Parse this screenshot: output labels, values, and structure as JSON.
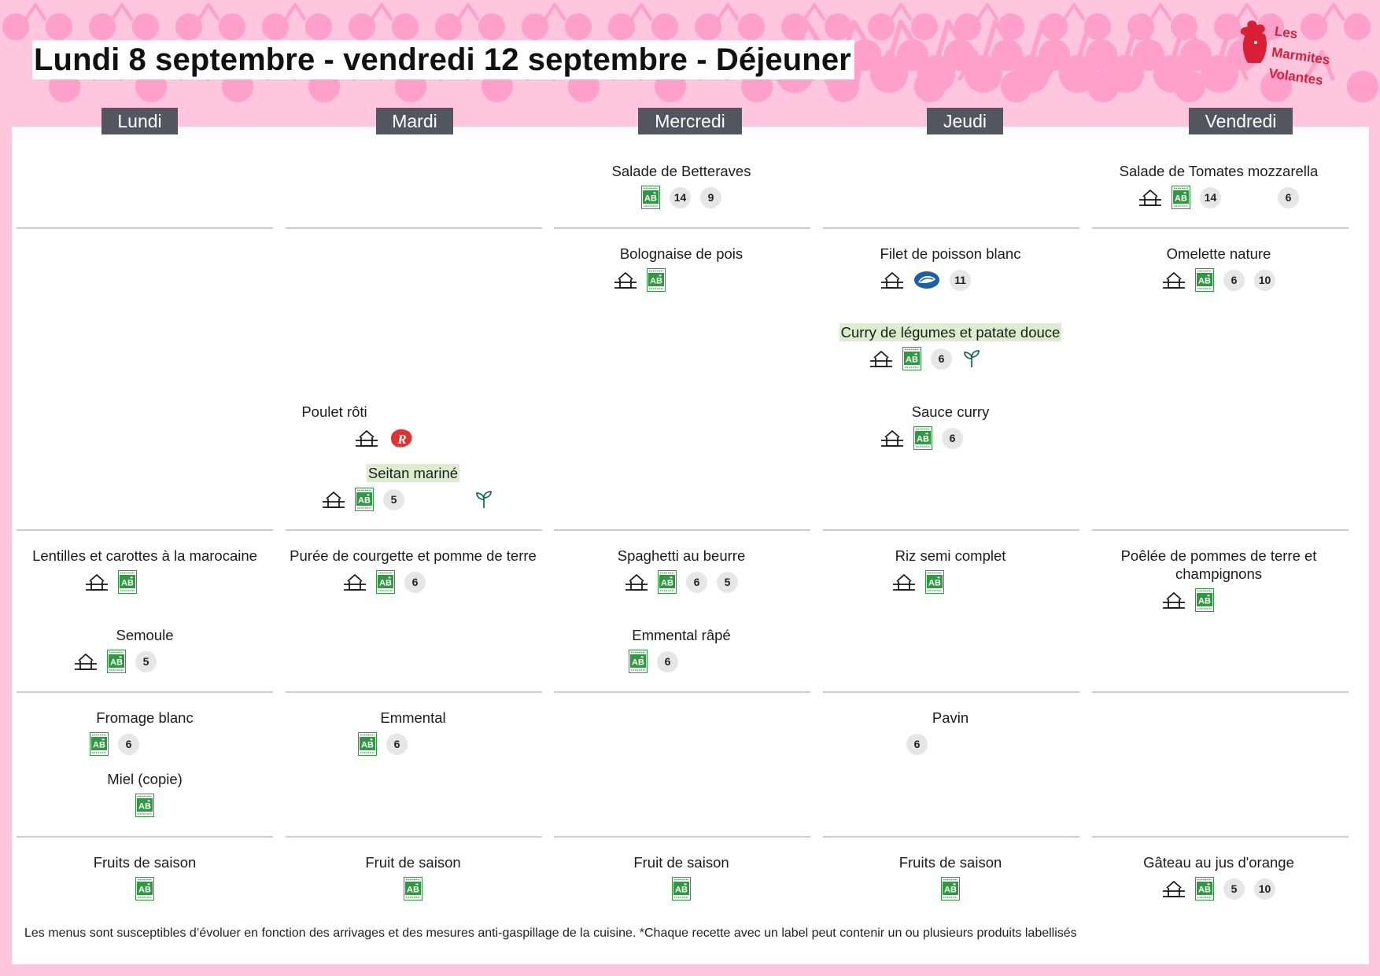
{
  "header": {
    "title": "Lundi 8 septembre - vendredi 12 septembre  - Déjeuner"
  },
  "logo": {
    "line1": "Les",
    "line2": "Marmites",
    "line3": "Volantes"
  },
  "colors": {
    "background_pink": "#ffc6de",
    "cherry_pink": "#ff9fcb",
    "tab_grey": "#53565e",
    "veg_highlight": "#dbedcf",
    "organic_green": "#2e9a3f",
    "logo_red": "#d81f36"
  },
  "days": [
    "Lundi",
    "Mardi",
    "Mercredi",
    "Jeudi",
    "Vendredi"
  ],
  "legend_icons": {
    "house": "fait-maison-icon",
    "ab": "agriculture-biologique-icon",
    "msc": "peche-durable-msc-icon",
    "label_rouge": "label-rouge-icon",
    "sprout": "vegetarien-sprout-icon",
    "number": "allergen-number-badge"
  },
  "menu": {
    "mercredi_entree": {
      "name": "Salade de Betteraves",
      "allergens": [
        "14",
        "9"
      ]
    },
    "vendredi_entree": {
      "name": "Salade de Tomates mozzarella",
      "allergens": [
        "14",
        "6"
      ]
    },
    "mercredi_plat": {
      "name": "Bolognaise de pois"
    },
    "jeudi_plat": {
      "name": "Filet de poisson blanc",
      "allergens": [
        "11"
      ]
    },
    "jeudi_veg": {
      "name": "Curry de légumes et patate douce",
      "allergens": [
        "6"
      ]
    },
    "jeudi_sauce": {
      "name": "Sauce curry",
      "allergens": [
        "6"
      ]
    },
    "vendredi_plat": {
      "name": "Omelette nature",
      "allergens": [
        "6",
        "10"
      ]
    },
    "mardi_plat": {
      "name": "Poulet rôti"
    },
    "mardi_veg": {
      "name": "Seitan mariné",
      "allergens": [
        "5"
      ]
    },
    "lundi_accomp": {
      "name": "Lentilles et carottes à la marocaine"
    },
    "lundi_accomp2": {
      "name": "Semoule",
      "allergens": [
        "5"
      ]
    },
    "mardi_accomp": {
      "name": "Purée de courgette et pomme de terre",
      "allergens": [
        "6"
      ]
    },
    "mercredi_accomp": {
      "name": "Spaghetti au beurre",
      "allergens": [
        "6",
        "5"
      ]
    },
    "mercredi_accomp2": {
      "name": "Emmental râpé",
      "allergens": [
        "6"
      ]
    },
    "jeudi_accomp": {
      "name": "Riz semi complet"
    },
    "vendredi_accomp": {
      "name_line1": "Poêlée de pommes de terre  et",
      "name_line2": "champignons"
    },
    "lundi_laitage": {
      "name": "Fromage blanc",
      "allergens": [
        "6"
      ]
    },
    "lundi_laitage2": {
      "name": "Miel  (copie)"
    },
    "mardi_laitage": {
      "name": "Emmental",
      "allergens": [
        "6"
      ]
    },
    "jeudi_laitage": {
      "name": "Pavin",
      "allergens": [
        "6"
      ]
    },
    "lundi_dessert": {
      "name": "Fruits de saison"
    },
    "mardi_dessert": {
      "name": "Fruit de saison"
    },
    "mercredi_dessert": {
      "name": "Fruit de saison"
    },
    "jeudi_dessert": {
      "name": "Fruits de saison"
    },
    "vendredi_dessert": {
      "name": "Gâteau au jus d'orange",
      "allergens": [
        "5",
        "10"
      ]
    }
  },
  "footer": {
    "note": "Les menus sont susceptibles d’évoluer en fonction des arrivages et des mesures anti-gaspillage de la cuisine. *Chaque recette avec un label peut contenir un ou plusieurs produits labellisés"
  }
}
